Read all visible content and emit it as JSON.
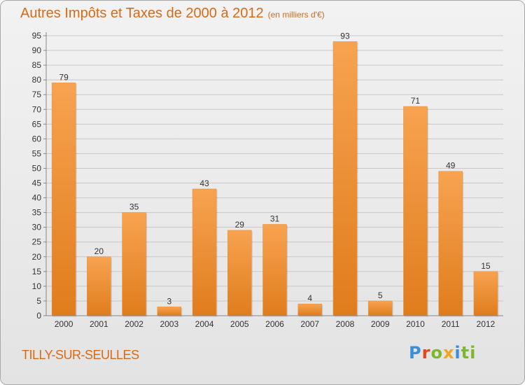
{
  "header": {
    "title": "Autres Impôts et Taxes de 2000 à 2012",
    "subtitle": "(en milliers d'€)"
  },
  "footer": {
    "place": "TILLY-SUR-SEULLES",
    "logo_letters": [
      "P",
      "r",
      "o",
      "x",
      "i",
      "ti"
    ]
  },
  "colors": {
    "bar_light": "#f7a350",
    "bar_dark": "#e07c1c",
    "title": "#d86a17",
    "grid": "#c8c8c8"
  },
  "chart_data": {
    "type": "bar",
    "categories": [
      "2000",
      "2001",
      "2002",
      "2003",
      "2004",
      "2005",
      "2006",
      "2007",
      "2008",
      "2009",
      "2010",
      "2011",
      "2012"
    ],
    "values": [
      79,
      20,
      35,
      3,
      43,
      29,
      31,
      4,
      93,
      5,
      71,
      49,
      15
    ],
    "title": "Autres Impôts et Taxes de 2000 à 2012",
    "subtitle": "(en milliers d'€)",
    "ylim": [
      0,
      95
    ],
    "yticks": [
      0,
      5,
      10,
      15,
      20,
      25,
      30,
      35,
      40,
      45,
      50,
      55,
      60,
      65,
      70,
      75,
      80,
      85,
      90,
      95
    ],
    "grid": true,
    "data_labels": true
  }
}
